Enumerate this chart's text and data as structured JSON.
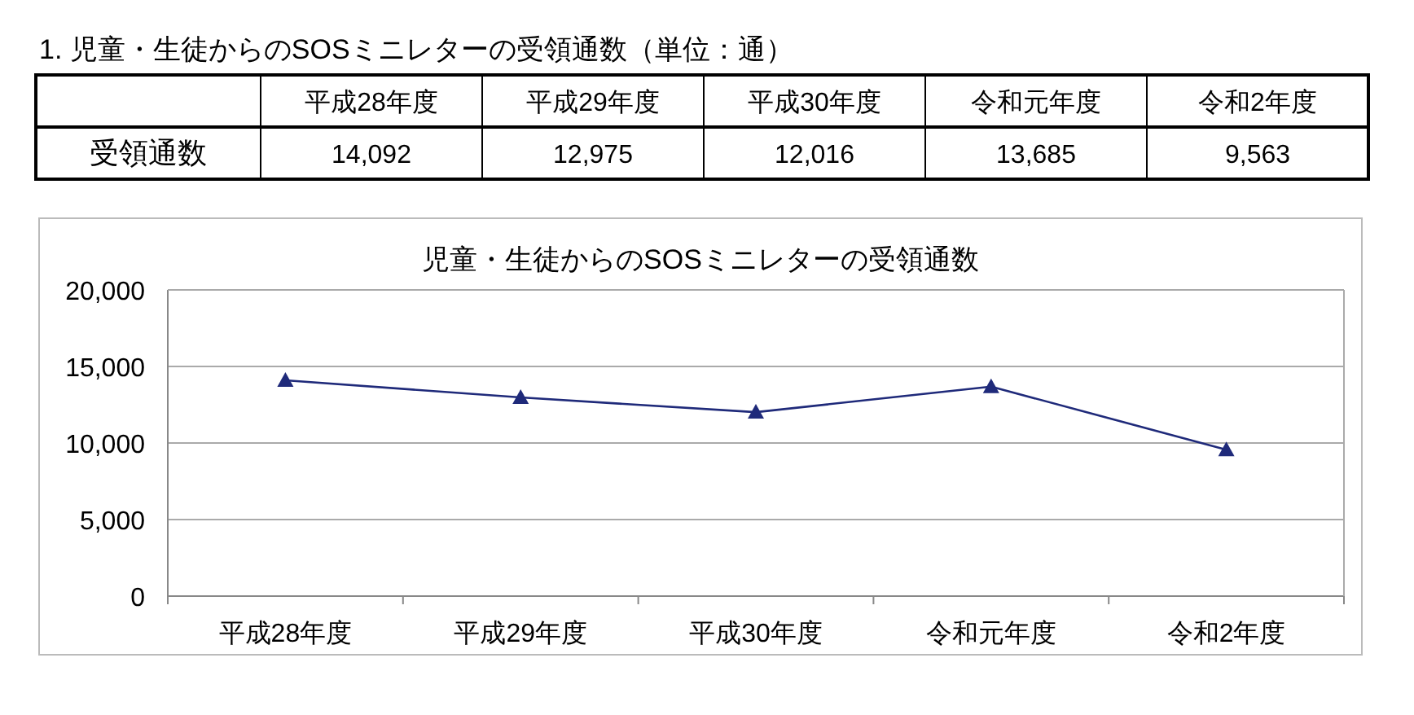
{
  "chart_data": {
    "type": "line",
    "title": "1. 児童・生徒からのSOSミニレターの受領通数（単位：通）",
    "subtitle": "児童・生徒からのSOSミニレターの受領通数",
    "categories": [
      "平成28年度",
      "平成29年度",
      "平成30年度",
      "令和元年度",
      "令和2年度"
    ],
    "series": [
      {
        "name": "受領通数",
        "color": "#1f2a7a",
        "values": [
          14092,
          12975,
          12016,
          13685,
          9563
        ],
        "value_labels": [
          "14,092",
          "12,975",
          "12,016",
          "13,685",
          "9,563"
        ]
      }
    ],
    "ylim": [
      0,
      20000
    ],
    "yticks": [
      {
        "value": 0,
        "label": "0"
      },
      {
        "value": 5000,
        "label": "5,000"
      },
      {
        "value": 10000,
        "label": "10,000"
      },
      {
        "value": 15000,
        "label": "15,000"
      },
      {
        "value": 20000,
        "label": "20,000"
      }
    ],
    "grid": "y",
    "marker": "triangle",
    "line_style": "solid"
  }
}
